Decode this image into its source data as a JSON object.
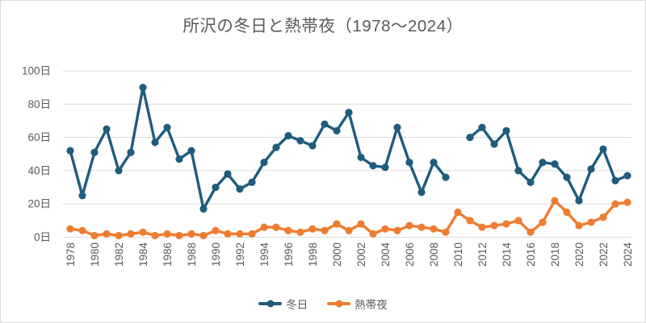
{
  "title": "所沢の冬日と熱帯夜（1978～2024）",
  "colors": {
    "background": "#ffffff",
    "border": "#d9d9d9",
    "gridline": "#d9d9d9",
    "title_text": "#595959",
    "axis_text": "#595959",
    "winter_series": "#1f5c7e",
    "tropical_series": "#ed7d31"
  },
  "y_axis": {
    "tick_labels": [
      "0日",
      "20日",
      "40日",
      "60日",
      "80日",
      "100日"
    ]
  },
  "x_axis": {
    "tick_labels": [
      "1978",
      "1980",
      "1982",
      "1984",
      "1986",
      "1988",
      "1990",
      "1992",
      "1994",
      "1996",
      "1998",
      "2000",
      "2002",
      "2004",
      "2006",
      "2008",
      "2010",
      "2012",
      "2014",
      "2016",
      "2018",
      "2020",
      "2022",
      "2024"
    ]
  },
  "legend": {
    "items": [
      {
        "label": "冬日",
        "color": "#1f5c7e"
      },
      {
        "label": "熱帯夜",
        "color": "#ed7d31"
      }
    ]
  },
  "chart_data": {
    "type": "line",
    "title": "所沢の冬日と熱帯夜（1978～2024）",
    "x": [
      1978,
      1979,
      1980,
      1981,
      1982,
      1983,
      1984,
      1985,
      1986,
      1987,
      1988,
      1989,
      1990,
      1991,
      1992,
      1993,
      1994,
      1995,
      1996,
      1997,
      1998,
      1999,
      2000,
      2001,
      2002,
      2003,
      2004,
      2005,
      2006,
      2007,
      2008,
      2009,
      2010,
      2011,
      2012,
      2013,
      2014,
      2015,
      2016,
      2017,
      2018,
      2019,
      2020,
      2021,
      2022,
      2023,
      2024
    ],
    "series": [
      {
        "name": "冬日",
        "color": "#1f5c7e",
        "values": [
          52,
          25,
          51,
          65,
          40,
          51,
          90,
          57,
          66,
          47,
          52,
          17,
          30,
          38,
          29,
          33,
          45,
          54,
          61,
          58,
          55,
          68,
          64,
          75,
          48,
          43,
          42,
          66,
          45,
          27,
          45,
          36,
          null,
          60,
          66,
          56,
          64,
          40,
          33,
          45,
          44,
          36,
          22,
          41,
          53,
          34,
          37
        ]
      },
      {
        "name": "熱帯夜",
        "color": "#ed7d31",
        "values": [
          5,
          4,
          1,
          2,
          1,
          2,
          3,
          1,
          2,
          1,
          2,
          1,
          4,
          2,
          2,
          2,
          6,
          6,
          4,
          3,
          5,
          4,
          8,
          4,
          8,
          2,
          5,
          4,
          7,
          6,
          5,
          3,
          15,
          10,
          6,
          7,
          8,
          10,
          3,
          9,
          22,
          15,
          7,
          9,
          12,
          20,
          21
        ]
      }
    ],
    "ylim": [
      0,
      100
    ],
    "yticks": [
      0,
      20,
      40,
      60,
      80,
      100
    ],
    "ytick_suffix": "日",
    "xtick_interval": 2,
    "xtick_rotation": -90,
    "grid": true,
    "legend_position": "bottom",
    "marker": "circle",
    "missing_data": {
      "冬日": [
        2010
      ]
    }
  }
}
